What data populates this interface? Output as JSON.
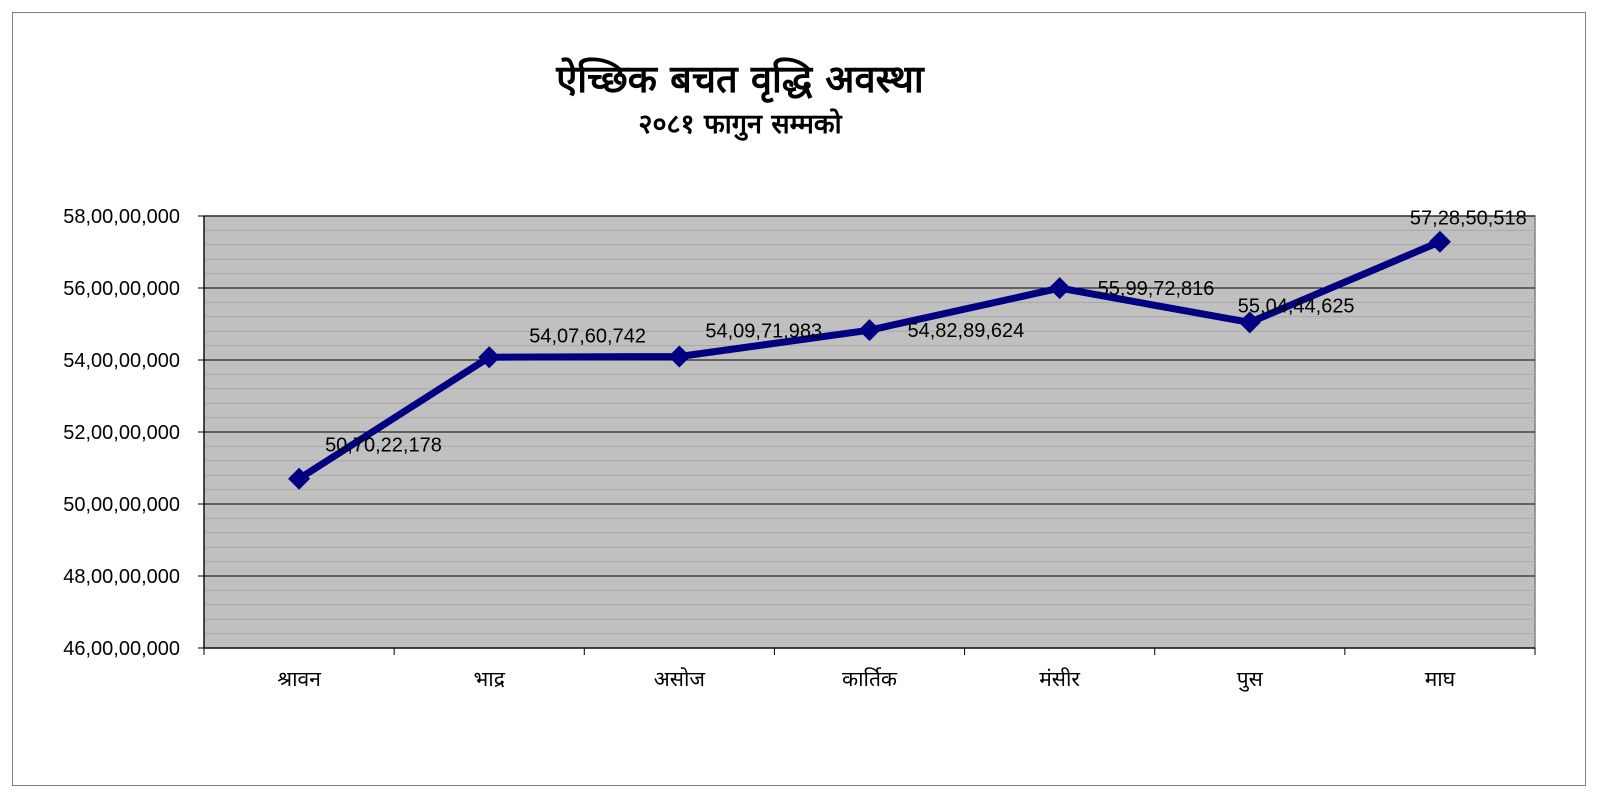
{
  "title": "ऐच्छिक बचत वृद्धि अवस्था",
  "subtitle": "२०८१ फागुन सम्मको",
  "colors": {
    "plot_background": "#c0c0c0",
    "line": "#000080",
    "gridline": "#000000",
    "minor_gridline": "#a8a8a8"
  },
  "chart_data": {
    "type": "line",
    "title": "ऐच्छिक बचत वृद्धि अवस्था",
    "subtitle": "२०८१ फागुन सम्मको",
    "xlabel": "",
    "ylabel": "",
    "categories": [
      "श्रावन",
      "भाद्र",
      "असोज",
      "कार्तिक",
      "मंसीर",
      "पुस",
      "माघ"
    ],
    "series": [
      {
        "values": [
          507022178,
          540760742,
          540971983,
          548289624,
          559972816,
          550444625,
          572850518
        ],
        "labels": [
          "50,70,22,178",
          "54,07,60,742",
          "54,09,71,983",
          "54,82,89,624",
          "55,99,72,816",
          "55,04,44,625",
          "57,28,50,518"
        ],
        "marker": "diamond"
      }
    ],
    "ylim": [
      460000000,
      580000000
    ],
    "yticks": [
      460000000,
      480000000,
      500000000,
      520000000,
      540000000,
      560000000,
      580000000
    ],
    "ytick_labels": [
      "46,00,00,000",
      "48,00,00,000",
      "50,00,00,000",
      "52,00,00,000",
      "54,00,00,000",
      "56,00,00,000",
      "58,00,00,000"
    ],
    "grid": true,
    "legend": "none"
  }
}
